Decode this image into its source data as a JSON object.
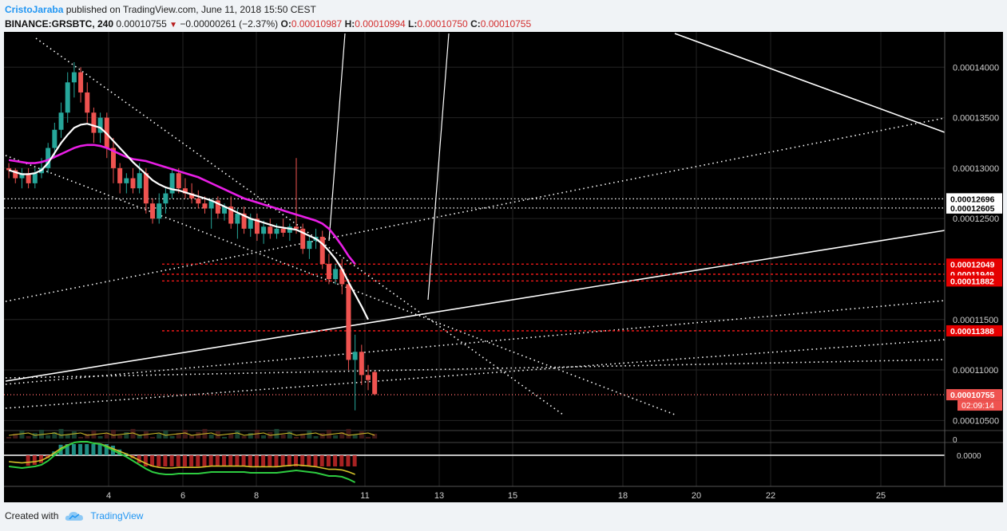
{
  "header": {
    "author": "CristoJaraba",
    "published_text": "published on TradingView.com, June 11, 2018 15:50 CEST",
    "symbol": "BINANCE:GRSBTC, 240",
    "last": "0.00010755",
    "change": "−0.00000261 (−2.37%)",
    "o_label": "O:",
    "o": "0.00010987",
    "h_label": "H:",
    "h": "0.00010994",
    "l_label": "L:",
    "l": "0.00010750",
    "c_label": "C:",
    "c": "0.00010755"
  },
  "footer": {
    "created_with": "Created with",
    "brand": "TradingView"
  },
  "colors": {
    "background": "#000000",
    "up": "#26a69a",
    "down": "#ef5350",
    "ma_fast": "#ffffff",
    "ma_slow": "#e91ee6",
    "level_line": "#ff1a1a",
    "grid": "#242424"
  },
  "chart_data": {
    "type": "candlestick",
    "x_ticks": [
      "4",
      "6",
      "8",
      "11",
      "13",
      "15",
      "18",
      "20",
      "22",
      "25"
    ],
    "y_ticks": [
      "0.00014000",
      "0.00013500",
      "0.00013000",
      "0.00012500",
      "0.00011500",
      "0.00011000",
      "0.00010500"
    ],
    "ylim": [
      0.000104,
      0.0001435
    ],
    "price_labels": [
      {
        "value": 0.00012696,
        "text": "0.00012696",
        "style": "dotted-white"
      },
      {
        "value": 0.00012605,
        "text": "0.00012605",
        "style": "dotted-white"
      },
      {
        "value": 0.00012049,
        "text": "0.00012049",
        "style": "red"
      },
      {
        "value": 0.00011949,
        "text": "0.00011949",
        "style": "red"
      },
      {
        "value": 0.00011882,
        "text": "0.00011882",
        "style": "red"
      },
      {
        "value": 0.00011388,
        "text": "0.00011388",
        "style": "red"
      },
      {
        "value": 0.00010755,
        "text": "0.00010755",
        "style": "current"
      }
    ],
    "countdown": "02:09:14",
    "indicator_ticks": [
      "0",
      "0.0000"
    ],
    "candles": [
      [
        0.00013,
        0.0001305,
        0.000129,
        0.0001298
      ],
      [
        0.0001298,
        0.00013,
        0.0001285,
        0.000129
      ],
      [
        0.000129,
        0.00013,
        0.000128,
        0.0001295
      ],
      [
        0.0001295,
        0.00013,
        0.000128,
        0.0001285
      ],
      [
        0.0001285,
        0.00013,
        0.000128,
        0.0001295
      ],
      [
        0.0001295,
        0.000131,
        0.000129,
        0.00013
      ],
      [
        0.00013,
        0.0001325,
        0.0001295,
        0.000132
      ],
      [
        0.000132,
        0.0001345,
        0.000131,
        0.0001338
      ],
      [
        0.0001338,
        0.0001365,
        0.000133,
        0.0001355
      ],
      [
        0.0001355,
        0.0001395,
        0.0001345,
        0.0001385
      ],
      [
        0.0001385,
        0.0001405,
        0.000137,
        0.0001395
      ],
      [
        0.0001395,
        0.00014,
        0.0001365,
        0.0001375
      ],
      [
        0.0001375,
        0.0001385,
        0.0001345,
        0.0001355
      ],
      [
        0.0001355,
        0.000136,
        0.0001325,
        0.0001335
      ],
      [
        0.0001335,
        0.0001355,
        0.0001325,
        0.000135
      ],
      [
        0.000135,
        0.0001355,
        0.000131,
        0.000132
      ],
      [
        0.000132,
        0.000133,
        0.0001285,
        0.00013
      ],
      [
        0.00013,
        0.0001305,
        0.0001275,
        0.0001285
      ],
      [
        0.0001285,
        0.0001295,
        0.0001275,
        0.000129
      ],
      [
        0.000129,
        0.00013,
        0.0001275,
        0.000128
      ],
      [
        0.000128,
        0.0001305,
        0.0001275,
        0.0001295
      ],
      [
        0.0001295,
        0.00013,
        0.0001255,
        0.0001265
      ],
      [
        0.0001265,
        0.000127,
        0.0001245,
        0.000125
      ],
      [
        0.000125,
        0.0001275,
        0.0001245,
        0.0001265
      ],
      [
        0.0001265,
        0.000128,
        0.0001255,
        0.0001275
      ],
      [
        0.0001275,
        0.00013,
        0.000127,
        0.0001295
      ],
      [
        0.0001295,
        0.00013,
        0.0001275,
        0.000128
      ],
      [
        0.000128,
        0.000129,
        0.000127,
        0.0001275
      ],
      [
        0.0001275,
        0.0001285,
        0.0001265,
        0.000127
      ],
      [
        0.000127,
        0.0001278,
        0.000126,
        0.0001265
      ],
      [
        0.0001265,
        0.0001272,
        0.0001255,
        0.000126
      ],
      [
        0.000126,
        0.000127,
        0.000124,
        0.0001268
      ],
      [
        0.0001268,
        0.0001272,
        0.000125,
        0.0001255
      ],
      [
        0.0001255,
        0.0001265,
        0.0001248,
        0.0001262
      ],
      [
        0.0001262,
        0.0001272,
        0.000124,
        0.0001245
      ],
      [
        0.0001245,
        0.000126,
        0.000123,
        0.0001255
      ],
      [
        0.0001255,
        0.0001262,
        0.0001235,
        0.000124
      ],
      [
        0.000124,
        0.0001255,
        0.0001232,
        0.000125
      ],
      [
        0.000125,
        0.0001255,
        0.0001228,
        0.0001235
      ],
      [
        0.0001235,
        0.0001248,
        0.0001225,
        0.0001242
      ],
      [
        0.0001242,
        0.000125,
        0.000123,
        0.0001235
      ],
      [
        0.0001235,
        0.0001245,
        0.000123,
        0.000124
      ],
      [
        0.000124,
        0.000125,
        0.0001232,
        0.0001236
      ],
      [
        0.0001236,
        0.0001245,
        0.0001228,
        0.0001242
      ],
      [
        0.0001242,
        0.000131,
        0.0001235,
        0.000124
      ],
      [
        0.000124,
        0.0001245,
        0.0001215,
        0.000122
      ],
      [
        0.000122,
        0.0001232,
        0.000121,
        0.0001228
      ],
      [
        0.0001228,
        0.000124,
        0.000122,
        0.0001232
      ],
      [
        0.0001232,
        0.0001238,
        0.00012,
        0.0001205
      ],
      [
        0.0001205,
        0.0001215,
        0.0001185,
        0.000119
      ],
      [
        0.000119,
        0.0001205,
        0.0001185,
        0.00012
      ],
      [
        0.00012,
        0.000121,
        0.0001175,
        0.0001185
      ],
      [
        0.0001185,
        0.000119,
        0.00011,
        0.000111
      ],
      [
        0.000111,
        0.0001135,
        0.000106,
        0.0001118
      ],
      [
        0.0001118,
        0.0001125,
        0.0001085,
        0.0001095
      ],
      [
        0.0001095,
        0.0001105,
        0.000108,
        0.000109
      ],
      [
        0.0001098,
        0.0001099,
        0.0001075,
        0.0001076
      ]
    ],
    "ma_fast": [
      0.0001298,
      0.0001296,
      0.0001294,
      0.0001294,
      0.0001295,
      0.0001298,
      0.0001305,
      0.0001315,
      0.0001325,
      0.0001333,
      0.000134,
      0.0001343,
      0.0001344,
      0.0001342,
      0.000134,
      0.0001334,
      0.0001327,
      0.000132,
      0.0001313,
      0.0001306,
      0.00013,
      0.0001294,
      0.0001288,
      0.0001284,
      0.0001281,
      0.0001279,
      0.0001278,
      0.0001276,
      0.0001274,
      0.0001272,
      0.000127,
      0.0001268,
      0.0001265,
      0.0001262,
      0.0001259,
      0.0001256,
      0.0001253,
      0.000125,
      0.0001248,
      0.0001246,
      0.0001244,
      0.0001242,
      0.0001241,
      0.000124,
      0.0001239,
      0.0001236,
      0.0001233,
      0.000123,
      0.0001225,
      0.0001218,
      0.000121,
      0.00012,
      0.0001187,
      0.0001175,
      0.0001163,
      0.000115
    ],
    "ma_slow": [
      0.0001308,
      0.0001307,
      0.0001306,
      0.0001305,
      0.0001305,
      0.0001306,
      0.0001308,
      0.0001311,
      0.0001314,
      0.0001317,
      0.000132,
      0.0001322,
      0.0001323,
      0.0001323,
      0.0001322,
      0.000132,
      0.0001317,
      0.0001314,
      0.0001311,
      0.0001309,
      0.0001308,
      0.0001307,
      0.0001305,
      0.0001303,
      0.0001301,
      0.0001299,
      0.0001297,
      0.0001295,
      0.0001293,
      0.0001291,
      0.0001288,
      0.0001285,
      0.0001282,
      0.0001279,
      0.0001276,
      0.0001273,
      0.000127,
      0.0001268,
      0.0001266,
      0.0001264,
      0.0001262,
      0.000126,
      0.0001258,
      0.0001256,
      0.0001254,
      0.0001252,
      0.000125,
      0.0001248,
      0.0001245,
      0.000124,
      0.0001232,
      0.0001223,
      0.0001213,
      0.0001205
    ]
  }
}
